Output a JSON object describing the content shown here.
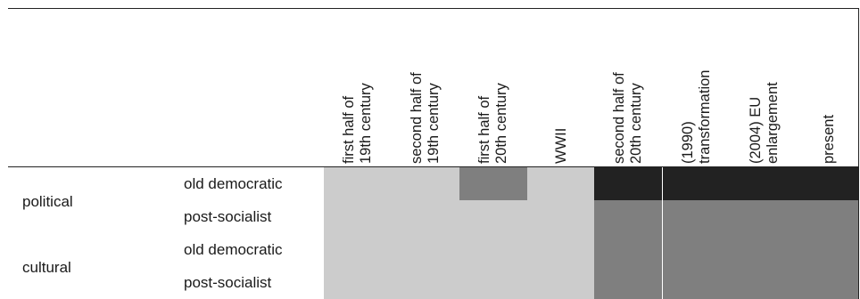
{
  "columns": [
    [
      "first half of",
      "19th century"
    ],
    [
      "second half of",
      "19th century"
    ],
    [
      "first half of",
      "20th century"
    ],
    [
      "WWII"
    ],
    [
      "second half of",
      "20th century"
    ],
    [
      "(1990)",
      "transformation"
    ],
    [
      "(2004) EU",
      "enlargement"
    ],
    [
      "present"
    ]
  ],
  "groups": [
    {
      "label": "political",
      "rows": [
        "old democratic",
        "post-socialist"
      ]
    },
    {
      "label": "cultural",
      "rows": [
        "old democratic",
        "post-socialist"
      ]
    }
  ],
  "shading": {
    "levels": {
      "light": "#cccccc",
      "medium": "#7f7f7f",
      "dark": "#222222"
    },
    "rows": [
      [
        "light",
        "light",
        "medium",
        "light",
        "dark",
        "dark",
        "dark",
        "dark"
      ],
      [
        "light",
        "light",
        "light",
        "light",
        "medium",
        "medium",
        "medium",
        "medium"
      ],
      [
        "light",
        "light",
        "light",
        "light",
        "medium",
        "medium",
        "medium",
        "medium"
      ],
      [
        "light",
        "light",
        "light",
        "light",
        "medium",
        "medium",
        "medium",
        "medium"
      ]
    ]
  }
}
